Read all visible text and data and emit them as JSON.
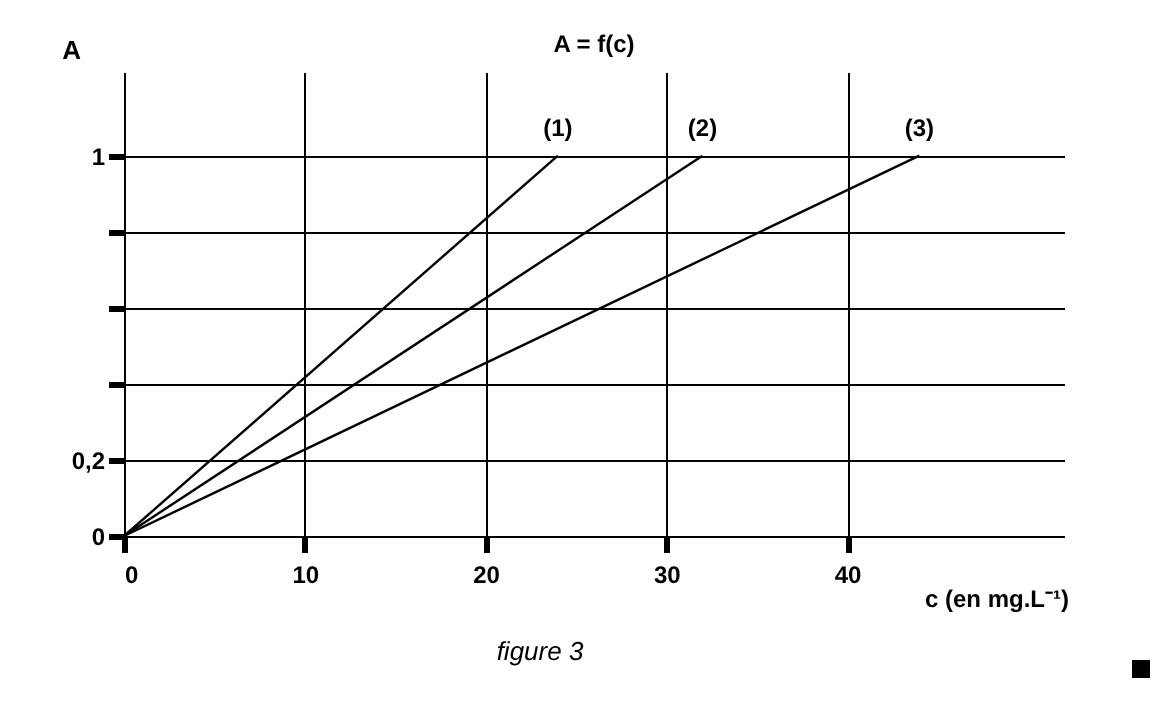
{
  "chart_data": {
    "type": "line",
    "title": "A = f(c)",
    "xlabel": "c (en mg.L⁻¹)",
    "ylabel": "A",
    "annotations": [
      {
        "text": "(1)",
        "x": 24,
        "y": 1
      },
      {
        "text": "(2)",
        "x": 32,
        "y": 1
      },
      {
        "text": "(3)",
        "x": 44,
        "y": 1
      },
      "figure 3"
    ],
    "series": [
      {
        "color": "#000000",
        "x": [
          0,
          24
        ],
        "values": [
          0,
          1
        ]
      },
      {
        "color": "#000000",
        "x": [
          0,
          32
        ],
        "values": [
          0,
          1
        ]
      },
      {
        "color": "#000000",
        "x": [
          0,
          44
        ],
        "values": [
          0,
          1
        ]
      }
    ],
    "xlim": [
      0,
      52
    ],
    "ylim": [
      0,
      1.22
    ],
    "xticks": [
      0,
      10,
      20,
      30,
      40
    ],
    "yticks": [
      {
        "value": 0,
        "label": "0"
      },
      {
        "value": 0.2,
        "label": "0,2"
      },
      {
        "value": 0.4,
        "label": null
      },
      {
        "value": 0.6,
        "label": null
      },
      {
        "value": 0.8,
        "label": null
      },
      {
        "value": 1,
        "label": "1"
      }
    ],
    "grid": true,
    "legend": false,
    "marker": "none",
    "line_style": "solid"
  }
}
